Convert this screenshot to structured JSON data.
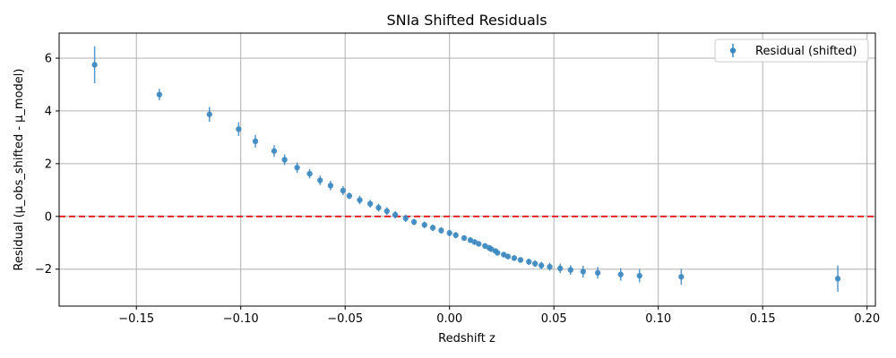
{
  "chart_data": {
    "type": "scatter",
    "title": "SNIa Shifted Residuals",
    "xlabel": "Redshift z",
    "ylabel": "Residual (µ_obs_shifted - µ_model)",
    "xlim": [
      -0.187,
      0.204
    ],
    "ylim": [
      -3.4,
      6.95
    ],
    "xticks": [
      -0.15,
      -0.1,
      -0.05,
      0.0,
      0.05,
      0.1,
      0.15,
      0.2
    ],
    "xtick_labels": [
      "−0.15",
      "−0.10",
      "−0.05",
      "0.00",
      "0.05",
      "0.10",
      "0.15",
      "0.20"
    ],
    "yticks": [
      -2,
      0,
      2,
      4,
      6
    ],
    "ytick_labels": [
      "−2",
      "0",
      "2",
      "4",
      "6"
    ],
    "grid": true,
    "legend": {
      "position": "top-right",
      "entries": [
        "Residual (shifted)"
      ]
    },
    "reference_line": {
      "y": 0,
      "style": "dashed",
      "color": "#e8141a"
    },
    "series": [
      {
        "name": "Residual (shifted)",
        "color": "#3b87bf",
        "x": [
          -0.17,
          -0.139,
          -0.115,
          -0.101,
          -0.093,
          -0.084,
          -0.079,
          -0.073,
          -0.067,
          -0.062,
          -0.057,
          -0.051,
          -0.048,
          -0.043,
          -0.038,
          -0.034,
          -0.03,
          -0.026,
          -0.021,
          -0.017,
          -0.012,
          -0.008,
          -0.004,
          0.0,
          0.003,
          0.007,
          0.01,
          0.012,
          0.014,
          0.017,
          0.019,
          0.02,
          0.022,
          0.023,
          0.026,
          0.028,
          0.031,
          0.034,
          0.038,
          0.041,
          0.044,
          0.048,
          0.053,
          0.058,
          0.064,
          0.071,
          0.082,
          0.091,
          0.111,
          0.186
        ],
        "y": [
          5.75,
          4.62,
          3.87,
          3.31,
          2.85,
          2.48,
          2.15,
          1.85,
          1.62,
          1.37,
          1.17,
          0.98,
          0.78,
          0.62,
          0.48,
          0.33,
          0.2,
          0.06,
          -0.07,
          -0.21,
          -0.32,
          -0.43,
          -0.53,
          -0.63,
          -0.71,
          -0.82,
          -0.9,
          -0.97,
          -1.04,
          -1.12,
          -1.19,
          -1.24,
          -1.31,
          -1.38,
          -1.45,
          -1.52,
          -1.58,
          -1.65,
          -1.72,
          -1.79,
          -1.86,
          -1.91,
          -1.97,
          -2.03,
          -2.09,
          -2.14,
          -2.2,
          -2.25,
          -2.29,
          -2.36
        ],
        "yerr": [
          0.7,
          0.22,
          0.28,
          0.26,
          0.24,
          0.22,
          0.2,
          0.2,
          0.18,
          0.18,
          0.18,
          0.17,
          0.12,
          0.16,
          0.15,
          0.15,
          0.15,
          0.14,
          0.14,
          0.12,
          0.12,
          0.12,
          0.12,
          0.12,
          0.12,
          0.1,
          0.1,
          0.09,
          0.09,
          0.09,
          0.08,
          0.08,
          0.08,
          0.08,
          0.09,
          0.09,
          0.1,
          0.1,
          0.12,
          0.12,
          0.14,
          0.15,
          0.18,
          0.18,
          0.22,
          0.22,
          0.24,
          0.25,
          0.3,
          0.5
        ]
      }
    ]
  }
}
